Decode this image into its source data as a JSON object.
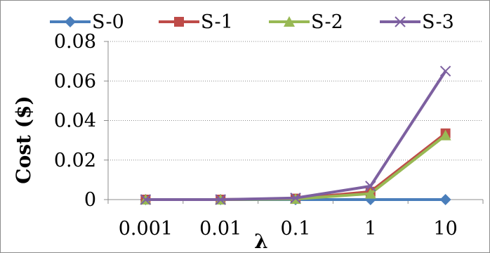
{
  "chart_data": {
    "type": "line",
    "title": "",
    "xlabel": "λ",
    "ylabel": "Cost ($)",
    "categories": [
      "0.001",
      "0.01",
      "0.1",
      "1",
      "10"
    ],
    "ylim": [
      0,
      0.08
    ],
    "yticks": [
      0,
      0.02,
      0.04,
      0.06,
      0.08
    ],
    "ytick_labels": [
      "0",
      "0.02",
      "0.04",
      "0.06",
      "0.08"
    ],
    "grid": "horizontal dotted",
    "legend_position": "top",
    "series": [
      {
        "name": "S-0",
        "color": "#4a7ebb",
        "marker": "diamond",
        "values": [
          0,
          0,
          0,
          0,
          0
        ]
      },
      {
        "name": "S-1",
        "color": "#be4b48",
        "marker": "square",
        "values": [
          0,
          0,
          0.0005,
          0.004,
          0.0335
        ]
      },
      {
        "name": "S-2",
        "color": "#98b954",
        "marker": "triangle",
        "values": [
          0,
          0,
          0.0003,
          0.003,
          0.0325
        ]
      },
      {
        "name": "S-3",
        "color": "#7d60a0",
        "marker": "x",
        "values": [
          0,
          0,
          0.0008,
          0.0068,
          0.065
        ]
      }
    ]
  }
}
